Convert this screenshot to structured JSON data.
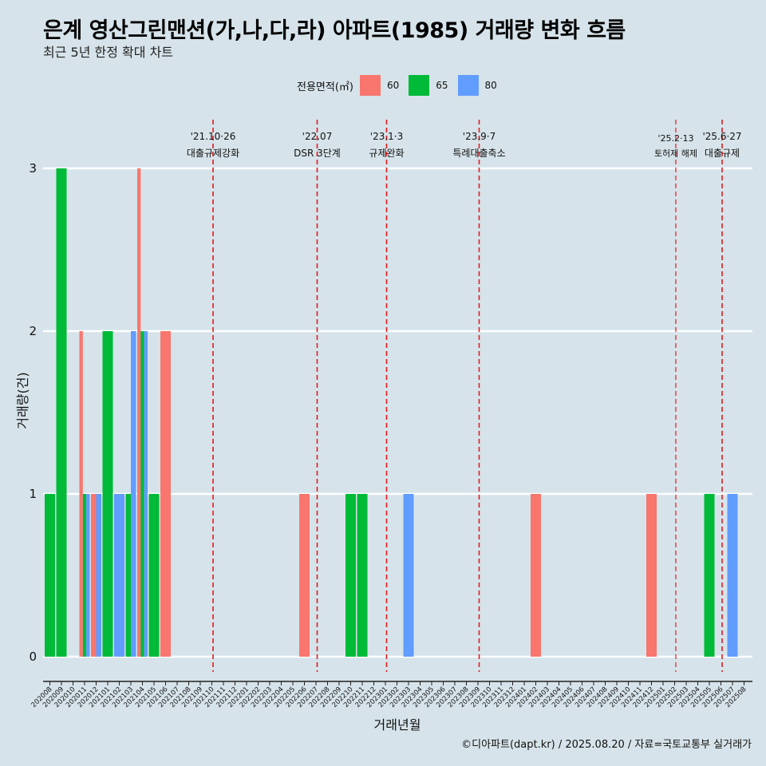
{
  "title": "은계 영산그린맨션(가,나,다,라) 아파트(1985) 거래량 변화 흐름",
  "subtitle": "최근 5년 한정 확대 차트",
  "caption": "©디아파트(dapt.kr) / 2025.08.20 / 자료=국토교통부 실거래가",
  "legend": {
    "title": "전용면적(㎡)",
    "items": [
      {
        "label": "60",
        "color": "#f8766d"
      },
      {
        "label": "65",
        "color": "#00ba38"
      },
      {
        "label": "80",
        "color": "#619cff"
      }
    ]
  },
  "chart_data": {
    "type": "bar",
    "title": "은계 영산그린맨션(가,나,다,라) 아파트(1985) 거래량 변화 흐름",
    "xlabel": "거래년월",
    "ylabel": "거래량(건)",
    "ylim": [
      0,
      3
    ],
    "yticks": [
      0,
      1,
      2,
      3
    ],
    "categories": [
      "202008",
      "202009",
      "202010",
      "202011",
      "202012",
      "202101",
      "202102",
      "202103",
      "202104",
      "202105",
      "202106",
      "202107",
      "202108",
      "202109",
      "202110",
      "202111",
      "202112",
      "202201",
      "202202",
      "202203",
      "202204",
      "202205",
      "202206",
      "202207",
      "202208",
      "202209",
      "202210",
      "202211",
      "202212",
      "202301",
      "202302",
      "202303",
      "202304",
      "202305",
      "202306",
      "202307",
      "202308",
      "202309",
      "202310",
      "202311",
      "202312",
      "202401",
      "202402",
      "202403",
      "202404",
      "202405",
      "202406",
      "202407",
      "202408",
      "202409",
      "202410",
      "202411",
      "202412",
      "202501",
      "202502",
      "202503",
      "202504",
      "202505",
      "202506",
      "202507",
      "202508"
    ],
    "series": [
      {
        "name": "60",
        "color": "#f8766d",
        "bars": [
          {
            "month": "202011",
            "value": 2
          },
          {
            "month": "202012",
            "value": 1
          },
          {
            "month": "202104",
            "value": 3
          },
          {
            "month": "202106",
            "value": 2
          },
          {
            "month": "202206",
            "value": 1
          },
          {
            "month": "202402",
            "value": 1
          },
          {
            "month": "202412",
            "value": 1
          }
        ]
      },
      {
        "name": "65",
        "color": "#00ba38",
        "bars": [
          {
            "month": "202008",
            "value": 1
          },
          {
            "month": "202009",
            "value": 3
          },
          {
            "month": "202011",
            "value": 1
          },
          {
            "month": "202101",
            "value": 2
          },
          {
            "month": "202103",
            "value": 1
          },
          {
            "month": "202104",
            "value": 2
          },
          {
            "month": "202105",
            "value": 1
          },
          {
            "month": "202210",
            "value": 1
          },
          {
            "month": "202211",
            "value": 1
          },
          {
            "month": "202505",
            "value": 1
          }
        ]
      },
      {
        "name": "80",
        "color": "#619cff",
        "bars": [
          {
            "month": "202011",
            "value": 1
          },
          {
            "month": "202012",
            "value": 1
          },
          {
            "month": "202102",
            "value": 1
          },
          {
            "month": "202103",
            "value": 2
          },
          {
            "month": "202104",
            "value": 2
          },
          {
            "month": "202303",
            "value": 1
          },
          {
            "month": "202507",
            "value": 1
          }
        ]
      }
    ],
    "annotations": [
      {
        "month": "202110",
        "date": "'21.10·26",
        "text": "대출규제강화",
        "small": false
      },
      {
        "month": "202207",
        "date": "'22.07",
        "text": "DSR 3단계",
        "small": false
      },
      {
        "month": "202301",
        "date": "'23.1·3",
        "text": "규제완화",
        "small": false
      },
      {
        "month": "202309",
        "date": "'23.9·7",
        "text": "특례대출축소",
        "small": false
      },
      {
        "month": "202502",
        "date": "'25.2·13",
        "text": "토허제 해제",
        "small": true
      },
      {
        "month": "202506",
        "date": "'25.6·27",
        "text": "대출규제",
        "small": false
      }
    ]
  }
}
